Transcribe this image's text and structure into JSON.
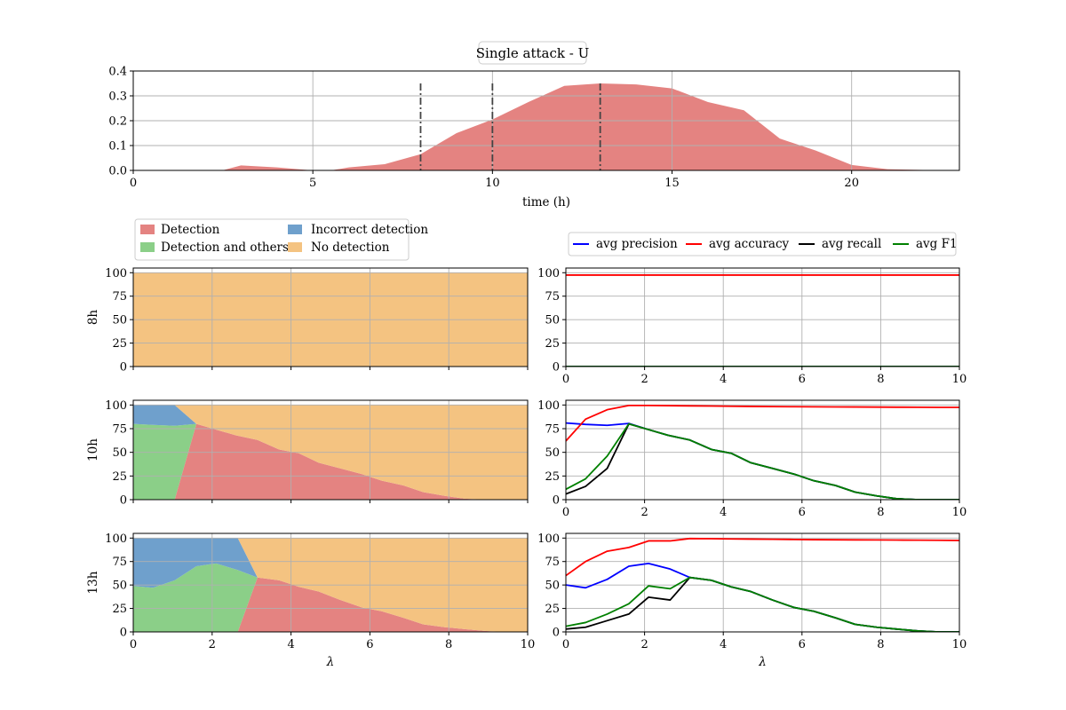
{
  "colors": {
    "detection": "#e48381",
    "detection_and_others": "#8bcf88",
    "incorrect_detection": "#6fa0cc",
    "no_detection": "#f4c381",
    "avg_precision": "#0000ff",
    "avg_accuracy": "#ff0000",
    "avg_recall": "#000000",
    "avg_f1": "#008000",
    "grid": "#b0b0b0"
  },
  "legends": {
    "area": [
      "Detection",
      "Detection and others",
      "Incorrect detection",
      "No detection"
    ],
    "metrics": [
      "avg precision",
      "avg accuracy",
      "avg recall",
      "avg F1"
    ]
  },
  "chart_data": [
    {
      "id": "top",
      "type": "area",
      "title": "Single attack - U",
      "xlabel": "time (h)",
      "ylabel": "",
      "xlim": [
        0,
        23
      ],
      "ylim": [
        0,
        0.4
      ],
      "xticks": [
        0,
        5,
        10,
        15,
        20
      ],
      "xtick_labels": [
        "0",
        "5",
        "10",
        "15",
        "20"
      ],
      "yticks": [
        0,
        0.1,
        0.2,
        0.3,
        0.4
      ],
      "ytick_labels": [
        "0.0",
        "0.1",
        "0.2",
        "0.3",
        "0.4"
      ],
      "grid": true,
      "x": [
        0,
        1,
        2,
        2.5,
        3,
        4,
        5,
        5.5,
        6,
        7,
        8,
        9,
        10,
        11,
        12,
        13,
        14,
        15,
        16,
        17,
        18,
        19,
        20,
        21,
        22,
        23
      ],
      "y": [
        0,
        0.001,
        0.001,
        0.001,
        0.02,
        0.012,
        0,
        0,
        0.012,
        0.025,
        0.065,
        0.15,
        0.205,
        0.275,
        0.34,
        0.35,
        0.346,
        0.33,
        0.275,
        0.242,
        0.128,
        0.08,
        0.022,
        0.005,
        0.002,
        0
      ],
      "vlines": [
        8,
        10,
        13
      ]
    },
    {
      "id": "a8",
      "type": "area",
      "ylabel": "8h",
      "xlim": [
        0,
        10
      ],
      "ylim": [
        0,
        105
      ],
      "yticks": [
        0,
        25,
        50,
        75,
        100
      ],
      "ytick_labels": [
        "0",
        "25",
        "50",
        "75",
        "100"
      ],
      "xticks": [
        0,
        2,
        4,
        6,
        8,
        10
      ],
      "xtick_labels": [
        "",
        "",
        "",
        "",
        "",
        ""
      ],
      "grid": true,
      "x": [
        0,
        10
      ],
      "series": [
        {
          "name": "Detection",
          "values": [
            0,
            0
          ]
        },
        {
          "name": "Detection and others",
          "values": [
            0,
            0
          ]
        },
        {
          "name": "Incorrect detection",
          "values": [
            0,
            0
          ]
        },
        {
          "name": "No detection",
          "values": [
            100,
            100
          ]
        }
      ]
    },
    {
      "id": "l8",
      "type": "line",
      "xlim": [
        0,
        10
      ],
      "ylim": [
        0,
        105
      ],
      "yticks": [
        0,
        25,
        50,
        75,
        100
      ],
      "ytick_labels": [
        "0",
        "25",
        "50",
        "75",
        "100"
      ],
      "xticks": [
        0,
        2,
        4,
        6,
        8,
        10
      ],
      "xtick_labels": [
        "0",
        "2",
        "4",
        "6",
        "8",
        "10"
      ],
      "grid": true,
      "x": [
        0,
        10
      ],
      "series": [
        {
          "name": "avg precision",
          "values": [
            0,
            0
          ]
        },
        {
          "name": "avg accuracy",
          "values": [
            97.5,
            97.5
          ]
        },
        {
          "name": "avg recall",
          "values": [
            0,
            0
          ]
        },
        {
          "name": "avg F1",
          "values": [
            0,
            0
          ]
        }
      ]
    },
    {
      "id": "a10",
      "type": "area",
      "ylabel": "10h",
      "xlim": [
        0,
        10
      ],
      "ylim": [
        0,
        105
      ],
      "yticks": [
        0,
        25,
        50,
        75,
        100
      ],
      "ytick_labels": [
        "0",
        "25",
        "50",
        "75",
        "100"
      ],
      "xticks": [
        0,
        2,
        4,
        6,
        8,
        10
      ],
      "xtick_labels": [
        "",
        "",
        "",
        "",
        "",
        ""
      ],
      "grid": true,
      "x": [
        0,
        0.5,
        1.05,
        1.6,
        2.1,
        2.6,
        3.15,
        3.7,
        4.2,
        4.7,
        5.25,
        5.8,
        6.3,
        6.85,
        7.35,
        7.9,
        8.4,
        8.95,
        9.45,
        10
      ],
      "series": [
        {
          "name": "Detection",
          "values": [
            0,
            0,
            0,
            80,
            74,
            68,
            63,
            53,
            49,
            39,
            33,
            27,
            20,
            15,
            8,
            4,
            1,
            0,
            0,
            0
          ]
        },
        {
          "name": "Detection and others",
          "values": [
            80,
            79,
            78,
            0,
            0,
            0,
            0,
            0,
            0,
            0,
            0,
            0,
            0,
            0,
            0,
            0,
            0,
            0,
            0,
            0
          ]
        },
        {
          "name": "Incorrect detection",
          "values": [
            20,
            21,
            22,
            0,
            0,
            0,
            0,
            0,
            0,
            0,
            0,
            0,
            0,
            0,
            0,
            0,
            0,
            0,
            0,
            0
          ]
        },
        {
          "name": "No detection",
          "values": [
            0,
            0,
            0,
            20,
            26,
            32,
            37,
            47,
            51,
            61,
            67,
            73,
            80,
            85,
            92,
            96,
            99,
            100,
            100,
            100
          ]
        }
      ]
    },
    {
      "id": "l10",
      "type": "line",
      "xlim": [
        0,
        10
      ],
      "ylim": [
        0,
        105
      ],
      "yticks": [
        0,
        25,
        50,
        75,
        100
      ],
      "ytick_labels": [
        "0",
        "25",
        "50",
        "75",
        "100"
      ],
      "xticks": [
        0,
        2,
        4,
        6,
        8,
        10
      ],
      "xtick_labels": [
        "0",
        "2",
        "4",
        "6",
        "8",
        "10"
      ],
      "grid": true,
      "x": [
        0,
        0.5,
        1.05,
        1.6,
        2.1,
        2.6,
        3.15,
        3.7,
        4.2,
        4.7,
        5.25,
        5.8,
        6.3,
        6.85,
        7.35,
        7.9,
        8.4,
        8.95,
        9.45,
        10
      ],
      "series": [
        {
          "name": "avg precision",
          "values": [
            81,
            79.5,
            78.5,
            80.5,
            74,
            68,
            63,
            53,
            49,
            39,
            33,
            27,
            20,
            15,
            8,
            4,
            1,
            0,
            0,
            0
          ]
        },
        {
          "name": "avg accuracy",
          "values": [
            62,
            85,
            95,
            99.5,
            99.5,
            99.3,
            99.1,
            98.9,
            98.7,
            98.5,
            98.3,
            98.2,
            98.1,
            98,
            97.9,
            97.8,
            97.7,
            97.6,
            97.5,
            97.5
          ]
        },
        {
          "name": "avg recall",
          "values": [
            6,
            14,
            33,
            80,
            74,
            68,
            63,
            53,
            49,
            39,
            33,
            27,
            20,
            15,
            8,
            4,
            1,
            0,
            0,
            0
          ]
        },
        {
          "name": "avg F1",
          "values": [
            11,
            22,
            46,
            80,
            74,
            68,
            63,
            53,
            49,
            39,
            33,
            27,
            20,
            15,
            8,
            4,
            1,
            0,
            0,
            0
          ]
        }
      ]
    },
    {
      "id": "a13",
      "type": "area",
      "ylabel": "13h",
      "xlabel": "λ",
      "xlim": [
        0,
        10
      ],
      "ylim": [
        0,
        105
      ],
      "yticks": [
        0,
        25,
        50,
        75,
        100
      ],
      "ytick_labels": [
        "0",
        "25",
        "50",
        "75",
        "100"
      ],
      "xticks": [
        0,
        2,
        4,
        6,
        8,
        10
      ],
      "xtick_labels": [
        "0",
        "2",
        "4",
        "6",
        "8",
        "10"
      ],
      "grid": true,
      "x": [
        0,
        0.5,
        1.05,
        1.6,
        2.1,
        2.65,
        3.15,
        3.7,
        4.2,
        4.7,
        5.25,
        5.8,
        6.3,
        6.85,
        7.35,
        7.9,
        8.4,
        8.95,
        9.45,
        10
      ],
      "series": [
        {
          "name": "Detection",
          "values": [
            0,
            0,
            0,
            0,
            0,
            0,
            58,
            55,
            48,
            43,
            34,
            26,
            22,
            15,
            8,
            5,
            3,
            1,
            0,
            0
          ]
        },
        {
          "name": "Detection and others",
          "values": [
            49,
            47,
            55,
            70,
            73,
            66,
            0,
            0,
            0,
            0,
            0,
            0,
            0,
            0,
            0,
            0,
            0,
            0,
            0,
            0
          ]
        },
        {
          "name": "Incorrect detection",
          "values": [
            51,
            53,
            45,
            30,
            27,
            34,
            0,
            0,
            0,
            0,
            0,
            0,
            0,
            0,
            0,
            0,
            0,
            0,
            0,
            0
          ]
        },
        {
          "name": "No detection",
          "values": [
            0,
            0,
            0,
            0,
            0,
            0,
            42,
            45,
            52,
            57,
            66,
            74,
            78,
            85,
            92,
            95,
            97,
            99,
            100,
            100
          ]
        }
      ]
    },
    {
      "id": "l13",
      "type": "line",
      "xlabel": "λ",
      "xlim": [
        0,
        10
      ],
      "ylim": [
        0,
        105
      ],
      "yticks": [
        0,
        25,
        50,
        75,
        100
      ],
      "ytick_labels": [
        "0",
        "25",
        "50",
        "75",
        "100"
      ],
      "xticks": [
        0,
        2,
        4,
        6,
        8,
        10
      ],
      "xtick_labels": [
        "0",
        "2",
        "4",
        "6",
        "8",
        "10"
      ],
      "grid": true,
      "x": [
        0,
        0.5,
        1.05,
        1.6,
        2.1,
        2.65,
        3.15,
        3.7,
        4.2,
        4.7,
        5.25,
        5.8,
        6.3,
        6.85,
        7.35,
        7.9,
        8.4,
        8.95,
        9.45,
        10
      ],
      "series": [
        {
          "name": "avg precision",
          "values": [
            50,
            47,
            56,
            70,
            73,
            67,
            58,
            55,
            48,
            43,
            34,
            26,
            22,
            15,
            8,
            5,
            3,
            1,
            0,
            0
          ]
        },
        {
          "name": "avg accuracy",
          "values": [
            60,
            75,
            86,
            90,
            97,
            97,
            99.5,
            99.3,
            99.1,
            98.9,
            98.7,
            98.5,
            98.3,
            98.2,
            98.1,
            98,
            97.9,
            97.8,
            97.7,
            97.5
          ]
        },
        {
          "name": "avg recall",
          "values": [
            3,
            5,
            12,
            19,
            37,
            34,
            58,
            55,
            48,
            43,
            34,
            26,
            22,
            15,
            8,
            5,
            3,
            1,
            0,
            0
          ]
        },
        {
          "name": "avg F1",
          "values": [
            6,
            10,
            19,
            30,
            49,
            46,
            58,
            55,
            48,
            43,
            34,
            26,
            22,
            15,
            8,
            5,
            3,
            1,
            0,
            0
          ]
        }
      ]
    }
  ]
}
